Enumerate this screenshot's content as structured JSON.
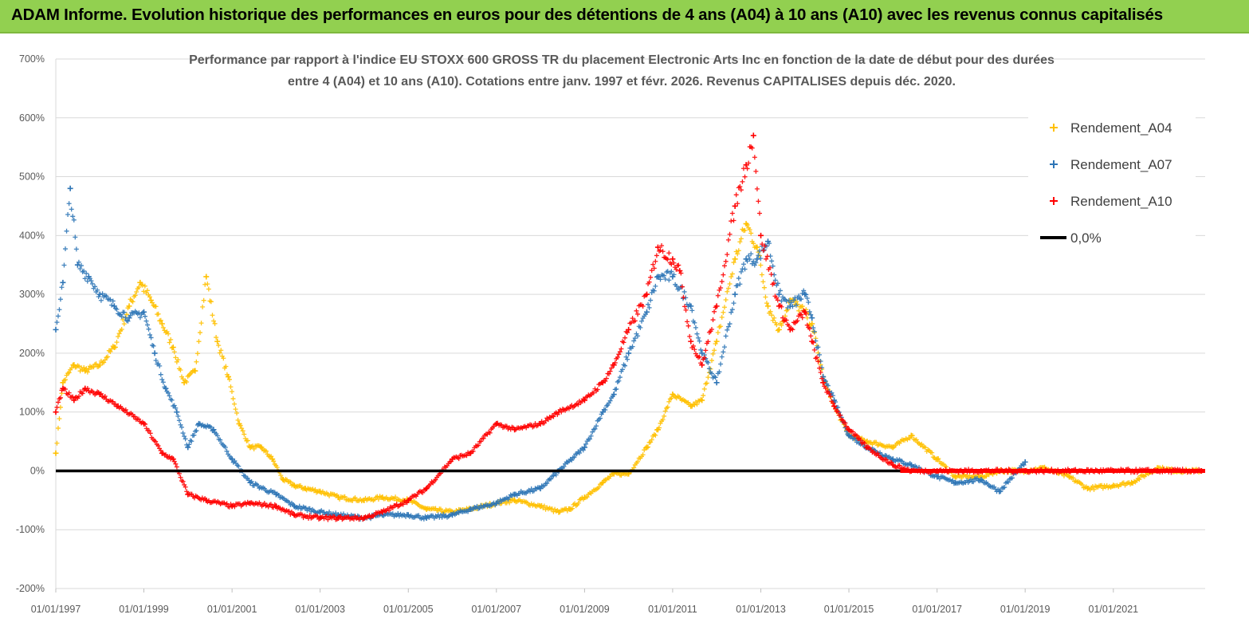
{
  "banner": {
    "title": "ADAM Informe. Evolution historique des performances en euros pour des détentions de 4 ans (A04) à 10 ans (A10) avec les revenus connus capitalisés"
  },
  "colors": {
    "banner_bg": "#92d050",
    "a04": "#ffc000",
    "a07": "#2e75b6",
    "a10": "#ff0000",
    "zero_line": "#000000",
    "grid": "#d9d9d9"
  },
  "chart_data": {
    "type": "scatter",
    "title": "Performance par rapport à l'indice EU STOXX 600 GROSS TR  du placement Electronic Arts Inc en fonction de la date de début pour des durées entre 4 (A04) et 10 ans (A10). Cotations entre janv. 1997 et févr. 2026. Revenus CAPITALISES depuis déc. 2020.",
    "title_lines": [
      "Performance par rapport à l'indice EU STOXX 600 GROSS TR  du placement Electronic Arts Inc en fonction de la date de début pour des durées",
      "entre 4 (A04) et 10 ans (A10). Cotations entre janv. 1997 et févr. 2026. Revenus CAPITALISES depuis déc. 2020."
    ],
    "ylim": [
      -200,
      700
    ],
    "y_ticks": [
      -200,
      -100,
      0,
      100,
      200,
      300,
      400,
      500,
      600,
      700
    ],
    "y_tick_labels": [
      "-200%",
      "-100%",
      "0%",
      "100%",
      "200%",
      "300%",
      "400%",
      "500%",
      "600%",
      "700%"
    ],
    "xlim": [
      "1997-01-01",
      "2023-02-01"
    ],
    "x_tick_labels": [
      "01/01/1997",
      "01/01/1999",
      "01/01/2001",
      "01/01/2003",
      "01/01/2005",
      "01/01/2007",
      "01/01/2009",
      "01/01/2011",
      "01/01/2013",
      "01/01/2015",
      "01/01/2017",
      "01/01/2019",
      "01/01/2021"
    ],
    "x_ticks": [
      "1997-01-01",
      "1999-01-01",
      "2001-01-01",
      "2003-01-01",
      "2005-01-01",
      "2007-01-01",
      "2009-01-01",
      "2011-01-01",
      "2013-01-01",
      "2015-01-01",
      "2017-01-01",
      "2019-01-01",
      "2021-01-01"
    ],
    "grid": "horizontal",
    "legend_position": "top-right",
    "legend": [
      "Rendement_A04",
      "Rendement_A07",
      "Rendement_A10",
      "0,0%"
    ],
    "series": [
      {
        "name": "Rendement_A04",
        "marker": "+",
        "points": [
          [
            "1997-01-01",
            30
          ],
          [
            "1997-03-01",
            150
          ],
          [
            "1997-06-01",
            180
          ],
          [
            "1997-09-01",
            170
          ],
          [
            "1998-01-01",
            180
          ],
          [
            "1998-05-01",
            210
          ],
          [
            "1998-09-01",
            280
          ],
          [
            "1998-12-01",
            320
          ],
          [
            "1999-03-01",
            290
          ],
          [
            "1999-06-01",
            250
          ],
          [
            "1999-09-01",
            210
          ],
          [
            "1999-12-01",
            150
          ],
          [
            "2000-03-01",
            170
          ],
          [
            "2000-06-01",
            330
          ],
          [
            "2000-09-01",
            220
          ],
          [
            "2000-12-01",
            160
          ],
          [
            "2001-03-01",
            80
          ],
          [
            "2001-06-01",
            40
          ],
          [
            "2001-09-01",
            40
          ],
          [
            "2001-12-01",
            20
          ],
          [
            "2002-03-01",
            -15
          ],
          [
            "2002-06-01",
            -25
          ],
          [
            "2002-09-01",
            -30
          ],
          [
            "2003-01-01",
            -35
          ],
          [
            "2003-06-01",
            -45
          ],
          [
            "2004-01-01",
            -50
          ],
          [
            "2004-06-01",
            -45
          ],
          [
            "2005-01-01",
            -50
          ],
          [
            "2005-06-01",
            -65
          ],
          [
            "2006-01-01",
            -70
          ],
          [
            "2006-06-01",
            -65
          ],
          [
            "2007-01-01",
            -55
          ],
          [
            "2007-06-01",
            -50
          ],
          [
            "2008-01-01",
            -60
          ],
          [
            "2008-06-01",
            -70
          ],
          [
            "2008-09-01",
            -65
          ],
          [
            "2009-01-01",
            -45
          ],
          [
            "2009-06-01",
            -20
          ],
          [
            "2009-09-01",
            -5
          ],
          [
            "2010-01-01",
            -5
          ],
          [
            "2010-06-01",
            40
          ],
          [
            "2010-09-01",
            70
          ],
          [
            "2011-01-01",
            130
          ],
          [
            "2011-06-01",
            110
          ],
          [
            "2011-09-01",
            120
          ],
          [
            "2012-01-01",
            220
          ],
          [
            "2012-06-01",
            360
          ],
          [
            "2012-09-01",
            420
          ],
          [
            "2012-12-01",
            380
          ],
          [
            "2013-03-01",
            280
          ],
          [
            "2013-06-01",
            240
          ],
          [
            "2013-09-01",
            290
          ],
          [
            "2014-01-01",
            270
          ],
          [
            "2014-03-01",
            250
          ],
          [
            "2014-06-01",
            160
          ],
          [
            "2014-09-01",
            110
          ],
          [
            "2015-01-01",
            60
          ],
          [
            "2015-06-01",
            50
          ],
          [
            "2016-01-01",
            40
          ],
          [
            "2016-06-01",
            60
          ],
          [
            "2017-01-01",
            20
          ],
          [
            "2017-06-01",
            -10
          ],
          [
            "2018-01-01",
            -10
          ],
          [
            "2018-06-01",
            0
          ],
          [
            "2019-01-01",
            0
          ],
          [
            "2019-06-01",
            5
          ],
          [
            "2020-01-01",
            -10
          ],
          [
            "2020-06-01",
            -30
          ],
          [
            "2021-01-01",
            -25
          ],
          [
            "2021-06-01",
            -20
          ],
          [
            "2022-01-01",
            5
          ],
          [
            "2022-06-01",
            0
          ],
          [
            "2023-01-01",
            0
          ]
        ]
      },
      {
        "name": "Rendement_A07",
        "marker": "+",
        "points": [
          [
            "1997-01-01",
            240
          ],
          [
            "1997-03-01",
            320
          ],
          [
            "1997-05-01",
            480
          ],
          [
            "1997-07-01",
            350
          ],
          [
            "1997-10-01",
            330
          ],
          [
            "1998-01-01",
            300
          ],
          [
            "1998-05-01",
            280
          ],
          [
            "1998-09-01",
            260
          ],
          [
            "1999-01-01",
            270
          ],
          [
            "1999-04-01",
            200
          ],
          [
            "1999-07-01",
            140
          ],
          [
            "1999-10-01",
            100
          ],
          [
            "2000-01-01",
            40
          ],
          [
            "2000-04-01",
            80
          ],
          [
            "2000-08-01",
            70
          ],
          [
            "2001-01-01",
            20
          ],
          [
            "2001-06-01",
            -20
          ],
          [
            "2002-01-01",
            -40
          ],
          [
            "2002-06-01",
            -60
          ],
          [
            "2003-01-01",
            -70
          ],
          [
            "2003-06-01",
            -75
          ],
          [
            "2004-01-01",
            -80
          ],
          [
            "2004-06-01",
            -75
          ],
          [
            "2005-01-01",
            -75
          ],
          [
            "2005-06-01",
            -80
          ],
          [
            "2006-01-01",
            -75
          ],
          [
            "2006-06-01",
            -65
          ],
          [
            "2007-01-01",
            -55
          ],
          [
            "2007-06-01",
            -40
          ],
          [
            "2008-01-01",
            -30
          ],
          [
            "2008-06-01",
            0
          ],
          [
            "2009-01-01",
            40
          ],
          [
            "2009-06-01",
            100
          ],
          [
            "2009-09-01",
            130
          ],
          [
            "2010-01-01",
            200
          ],
          [
            "2010-06-01",
            270
          ],
          [
            "2010-09-01",
            330
          ],
          [
            "2011-01-01",
            330
          ],
          [
            "2011-06-01",
            280
          ],
          [
            "2011-09-01",
            200
          ],
          [
            "2012-01-01",
            150
          ],
          [
            "2012-06-01",
            300
          ],
          [
            "2012-09-01",
            360
          ],
          [
            "2012-12-01",
            360
          ],
          [
            "2013-03-01",
            390
          ],
          [
            "2013-06-01",
            300
          ],
          [
            "2013-09-01",
            280
          ],
          [
            "2014-01-01",
            300
          ],
          [
            "2014-03-01",
            260
          ],
          [
            "2014-06-01",
            160
          ],
          [
            "2014-09-01",
            120
          ],
          [
            "2015-01-01",
            60
          ],
          [
            "2015-06-01",
            40
          ],
          [
            "2016-01-01",
            20
          ],
          [
            "2016-06-01",
            10
          ],
          [
            "2017-01-01",
            -10
          ],
          [
            "2017-06-01",
            -20
          ],
          [
            "2018-01-01",
            -15
          ],
          [
            "2018-06-01",
            -35
          ],
          [
            "2019-01-01",
            15
          ]
        ]
      },
      {
        "name": "Rendement_A10",
        "marker": "+",
        "points": [
          [
            "1997-01-01",
            100
          ],
          [
            "1997-03-01",
            140
          ],
          [
            "1997-06-01",
            120
          ],
          [
            "1997-09-01",
            140
          ],
          [
            "1998-01-01",
            130
          ],
          [
            "1998-06-01",
            110
          ],
          [
            "1999-01-01",
            80
          ],
          [
            "1999-06-01",
            30
          ],
          [
            "1999-09-01",
            20
          ],
          [
            "2000-01-01",
            -40
          ],
          [
            "2000-06-01",
            -50
          ],
          [
            "2001-01-01",
            -60
          ],
          [
            "2001-06-01",
            -55
          ],
          [
            "2002-01-01",
            -60
          ],
          [
            "2002-06-01",
            -75
          ],
          [
            "2003-01-01",
            -80
          ],
          [
            "2003-06-01",
            -80
          ],
          [
            "2004-01-01",
            -80
          ],
          [
            "2004-06-01",
            -70
          ],
          [
            "2005-01-01",
            -50
          ],
          [
            "2005-06-01",
            -30
          ],
          [
            "2006-01-01",
            20
          ],
          [
            "2006-06-01",
            30
          ],
          [
            "2007-01-01",
            80
          ],
          [
            "2007-06-01",
            70
          ],
          [
            "2008-01-01",
            80
          ],
          [
            "2008-06-01",
            100
          ],
          [
            "2009-01-01",
            120
          ],
          [
            "2009-06-01",
            150
          ],
          [
            "2009-09-01",
            180
          ],
          [
            "2010-01-01",
            240
          ],
          [
            "2010-06-01",
            300
          ],
          [
            "2010-09-01",
            380
          ],
          [
            "2011-01-01",
            360
          ],
          [
            "2011-03-01",
            340
          ],
          [
            "2011-06-01",
            220
          ],
          [
            "2011-09-01",
            180
          ],
          [
            "2012-01-01",
            280
          ],
          [
            "2012-06-01",
            450
          ],
          [
            "2012-09-01",
            520
          ],
          [
            "2012-11-01",
            570
          ],
          [
            "2013-01-01",
            400
          ],
          [
            "2013-06-01",
            280
          ],
          [
            "2013-09-01",
            240
          ],
          [
            "2014-01-01",
            270
          ],
          [
            "2014-03-01",
            220
          ],
          [
            "2014-06-01",
            150
          ],
          [
            "2014-09-01",
            110
          ],
          [
            "2015-01-01",
            70
          ],
          [
            "2015-06-01",
            40
          ],
          [
            "2016-01-01",
            10
          ],
          [
            "2016-06-01",
            0
          ],
          [
            "2017-01-01",
            0
          ],
          [
            "2018-01-01",
            0
          ],
          [
            "2019-01-01",
            0
          ],
          [
            "2020-01-01",
            0
          ],
          [
            "2021-01-01",
            0
          ],
          [
            "2022-01-01",
            0
          ],
          [
            "2023-01-01",
            0
          ]
        ]
      }
    ],
    "reference_line": {
      "name": "0,0%",
      "y": 0
    }
  }
}
